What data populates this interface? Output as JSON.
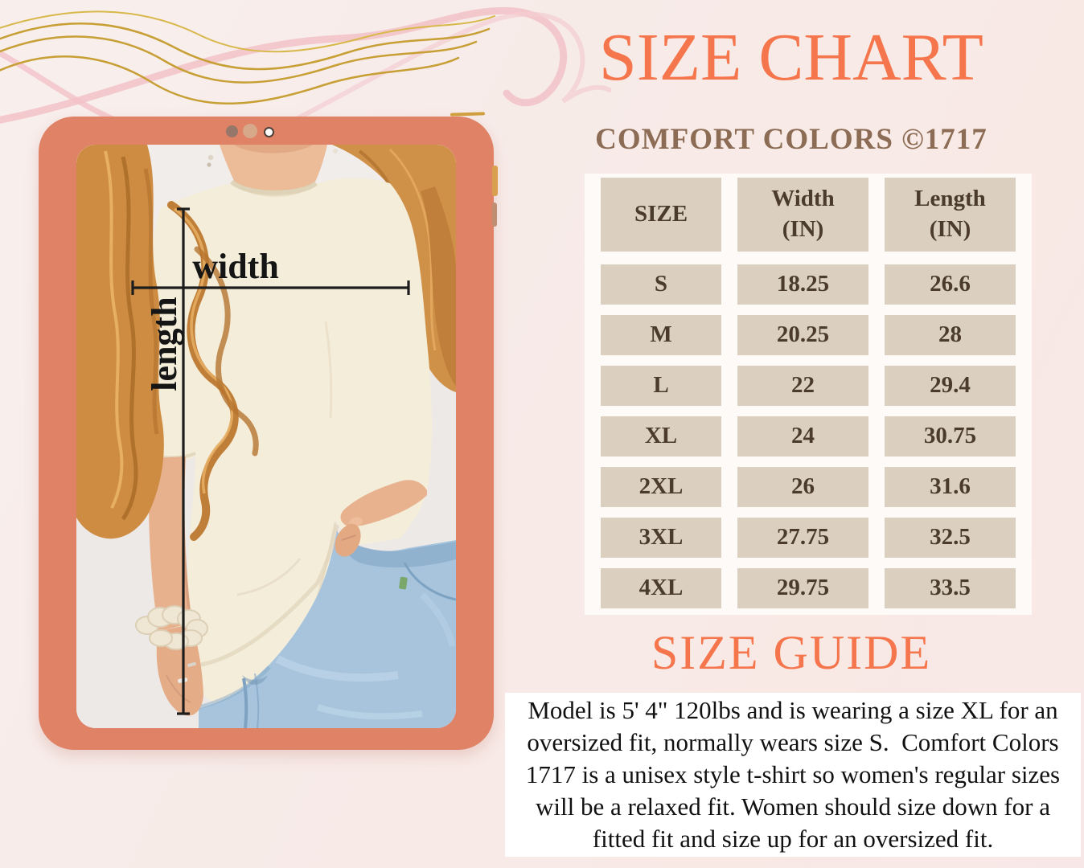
{
  "colors": {
    "accent_orange": "#f5764c",
    "subtitle_brown": "#8c6c54",
    "tablet_frame_salmon": "#df8266",
    "table_cell_beige": "#dbd0c0",
    "table_text_brown": "#4a3b2e",
    "jeans_blue": "#a7c4dc",
    "shirt_cream": "#f4edda"
  },
  "header": {
    "title": "SIZE CHART",
    "subtitle": "COMFORT COLORS ©1717"
  },
  "tablet": {
    "annotations": {
      "width": "width",
      "length": "length"
    }
  },
  "size_table": {
    "columns": [
      {
        "label": "SIZE",
        "unit": ""
      },
      {
        "label": "Width",
        "unit": "(IN)"
      },
      {
        "label": "Length",
        "unit": "(IN)"
      }
    ],
    "rows": [
      [
        "S",
        "18.25",
        "26.6"
      ],
      [
        "M",
        "20.25",
        "28"
      ],
      [
        "L",
        "22",
        "29.4"
      ],
      [
        "XL",
        "24",
        "30.75"
      ],
      [
        "2XL",
        "26",
        "31.6"
      ],
      [
        "3XL",
        "27.75",
        "32.5"
      ],
      [
        "4XL",
        "29.75",
        "33.5"
      ]
    ]
  },
  "size_guide": {
    "heading": "SIZE GUIDE",
    "lines": [
      "Model is 5' 4\" 120lbs and is wearing a size XL for an",
      "oversized fit, normally wears size S.  Comfort Colors",
      "1717 is a unisex style t-shirt so women's regular sizes",
      "will be a relaxed fit. Women should size down for a",
      "fitted fit and size up for an oversized fit."
    ]
  }
}
